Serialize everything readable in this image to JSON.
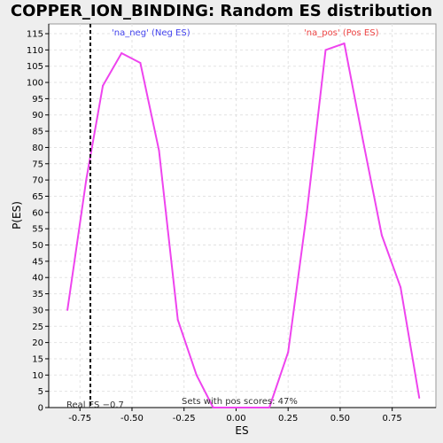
{
  "chart_data": {
    "type": "line",
    "title": "COPPER_ION_BINDING: Random ES distribution",
    "xlabel": "ES",
    "ylabel": "P(ES)",
    "xlim": [
      -0.9,
      0.96
    ],
    "ylim": [
      0,
      118
    ],
    "x_ticks": [
      "-0.75",
      "-0.50",
      "-0.25",
      "0.00",
      "0.25",
      "0.50",
      "0.75"
    ],
    "y_ticks": [
      "0",
      "5",
      "10",
      "15",
      "20",
      "25",
      "30",
      "35",
      "40",
      "45",
      "50",
      "55",
      "60",
      "65",
      "70",
      "75",
      "80",
      "85",
      "90",
      "95",
      "100",
      "105",
      "110",
      "115"
    ],
    "grid": true,
    "series": [
      {
        "color": "#ee44ee",
        "x": [
          -0.81,
          -0.72,
          -0.64,
          -0.55,
          -0.46,
          -0.37,
          -0.28,
          -0.19,
          -0.11,
          -0.02,
          0.07,
          0.16,
          0.25,
          0.34,
          0.43,
          0.52,
          0.61,
          0.7,
          0.79,
          0.88
        ],
        "y": [
          30,
          70,
          99,
          109,
          106,
          79,
          27,
          10,
          0,
          0,
          0,
          0,
          17,
          60,
          110,
          112,
          82,
          53,
          37,
          3
        ]
      }
    ],
    "annotations": {
      "neg_label": "'na_neg' (Neg ES)",
      "neg_color": "#4444ee",
      "pos_label": "'na_pos' (Pos ES)",
      "pos_color": "#ee4444",
      "real_es_label": "Real ES −0.7",
      "real_es": -0.7,
      "pos_scores_label": "Sets with pos scores: 47%"
    }
  }
}
